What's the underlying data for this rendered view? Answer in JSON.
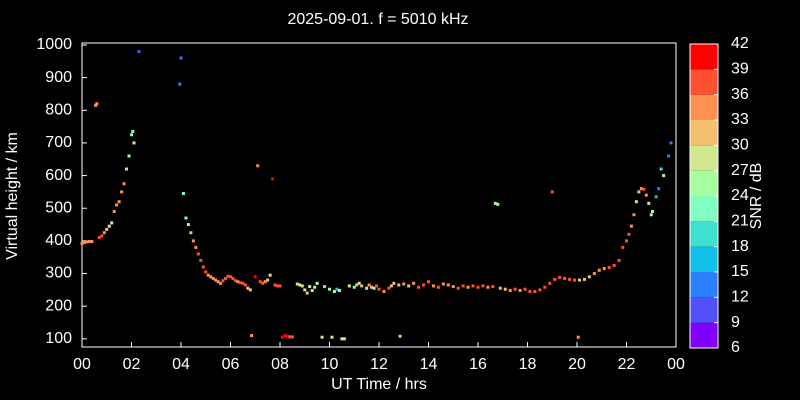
{
  "chart_data": {
    "type": "scatter",
    "title": "2025-09-01. f = 5010 kHz",
    "x_label": "UT Time / hrs",
    "y_label": "Virtual height / km",
    "colorbar_label": "SNR / dB",
    "xlim": [
      0,
      24
    ],
    "ylim": [
      75,
      1006
    ],
    "xticks": [
      {
        "value": 0,
        "label": "00"
      },
      {
        "value": 2,
        "label": "02"
      },
      {
        "value": 4,
        "label": "04"
      },
      {
        "value": 6,
        "label": "06"
      },
      {
        "value": 8,
        "label": "08"
      },
      10,
      12,
      14,
      16,
      18,
      20,
      22,
      {
        "value": 24,
        "label": "00"
      }
    ],
    "yticks": [
      100,
      200,
      300,
      400,
      500,
      600,
      700,
      800,
      900,
      1000
    ],
    "clim": [
      6,
      42
    ],
    "cticks": [
      6,
      9,
      12,
      15,
      18,
      21,
      24,
      27,
      30,
      33,
      36,
      39,
      42
    ],
    "colormap": [
      "#8000ff",
      "#5050ff",
      "#2a80ff",
      "#10c0e8",
      "#40e0d0",
      "#80ffc0",
      "#a8ffa0",
      "#d0e890",
      "#f4c070",
      "#ff9050",
      "#ff5030",
      "#ff0000"
    ],
    "x": [
      0.0,
      0.1,
      0.2,
      0.3,
      0.4,
      0.55,
      0.6,
      0.7,
      0.8,
      0.9,
      1.0,
      1.1,
      1.2,
      1.3,
      1.4,
      1.5,
      1.6,
      1.7,
      1.8,
      1.9,
      2.0,
      2.05,
      2.1,
      2.3,
      3.95,
      4.0,
      4.1,
      4.2,
      4.3,
      4.4,
      4.5,
      4.6,
      4.7,
      4.8,
      4.9,
      5.0,
      5.1,
      5.2,
      5.3,
      5.4,
      5.5,
      5.6,
      5.7,
      5.8,
      5.9,
      6.0,
      6.1,
      6.2,
      6.3,
      6.4,
      6.5,
      6.6,
      6.7,
      6.8,
      6.85,
      7.0,
      7.1,
      7.2,
      7.3,
      7.4,
      7.5,
      7.6,
      7.7,
      7.8,
      7.9,
      8.0,
      8.1,
      8.2,
      8.3,
      8.4,
      8.5,
      8.7,
      8.8,
      8.9,
      9.0,
      9.1,
      9.2,
      9.3,
      9.4,
      9.5,
      9.7,
      9.8,
      10.0,
      10.1,
      10.2,
      10.3,
      10.4,
      10.5,
      10.6,
      10.8,
      11.0,
      11.1,
      11.2,
      11.3,
      11.5,
      11.6,
      11.7,
      11.8,
      11.9,
      12.0,
      12.2,
      12.4,
      12.5,
      12.6,
      12.8,
      12.85,
      13.0,
      13.2,
      13.4,
      13.6,
      13.8,
      14.0,
      14.2,
      14.4,
      14.6,
      14.8,
      15.0,
      15.2,
      15.4,
      15.6,
      15.8,
      16.0,
      16.2,
      16.4,
      16.6,
      16.7,
      16.8,
      16.9,
      17.1,
      17.3,
      17.5,
      17.7,
      17.9,
      18.1,
      18.3,
      18.5,
      18.7,
      18.9,
      19.0,
      19.1,
      19.3,
      19.5,
      19.7,
      19.9,
      20.05,
      20.1,
      20.3,
      20.5,
      20.7,
      20.9,
      21.1,
      21.3,
      21.5,
      21.7,
      21.85,
      22.0,
      22.1,
      22.2,
      22.3,
      22.4,
      22.5,
      22.6,
      22.7,
      22.8,
      22.9,
      23.0,
      23.05,
      23.2,
      23.3,
      23.4,
      23.5,
      23.7,
      23.8
    ],
    "y": [
      392,
      395,
      397,
      398,
      398,
      815,
      820,
      410,
      415,
      425,
      435,
      445,
      455,
      490,
      510,
      520,
      550,
      575,
      620,
      660,
      725,
      735,
      700,
      980,
      880,
      960,
      545,
      470,
      450,
      425,
      400,
      380,
      360,
      340,
      320,
      305,
      295,
      290,
      285,
      280,
      275,
      270,
      278,
      285,
      292,
      290,
      285,
      278,
      275,
      272,
      270,
      265,
      255,
      250,
      110,
      290,
      630,
      275,
      270,
      275,
      280,
      295,
      590,
      265,
      262,
      262,
      105,
      110,
      108,
      106,
      106,
      268,
      265,
      262,
      250,
      240,
      260,
      248,
      258,
      270,
      105,
      260,
      252,
      105,
      245,
      252,
      248,
      100,
      100,
      262,
      258,
      265,
      270,
      262,
      255,
      265,
      258,
      255,
      262,
      252,
      245,
      255,
      262,
      270,
      265,
      108,
      268,
      262,
      270,
      258,
      265,
      275,
      262,
      258,
      268,
      265,
      260,
      255,
      262,
      258,
      262,
      258,
      262,
      258,
      260,
      515,
      512,
      255,
      252,
      248,
      252,
      248,
      252,
      245,
      245,
      250,
      258,
      270,
      550,
      282,
      288,
      285,
      282,
      280,
      105,
      280,
      282,
      290,
      300,
      310,
      315,
      318,
      325,
      340,
      380,
      400,
      420,
      445,
      480,
      520,
      550,
      560,
      558,
      540,
      515,
      480,
      490,
      535,
      560,
      620,
      600,
      660,
      700
    ],
    "snr": [
      34,
      34,
      34,
      34,
      34,
      34,
      34,
      36,
      36,
      33,
      30,
      27,
      24,
      33,
      33,
      33,
      33,
      33,
      27,
      24,
      21,
      21,
      27,
      9,
      12,
      12,
      21,
      21,
      27,
      30,
      33,
      33,
      36,
      36,
      36,
      36,
      34,
      33,
      33,
      34,
      33,
      33,
      36,
      36,
      36,
      36,
      36,
      36,
      33,
      36,
      36,
      36,
      30,
      30,
      34,
      40,
      33,
      36,
      36,
      33,
      30,
      27,
      40,
      36,
      38,
      38,
      40,
      40,
      40,
      36,
      36,
      27,
      27,
      27,
      27,
      30,
      24,
      27,
      27,
      24,
      27,
      30,
      21,
      27,
      24,
      15,
      27,
      27,
      27,
      27,
      21,
      30,
      27,
      30,
      27,
      33,
      30,
      24,
      36,
      36,
      33,
      36,
      30,
      30,
      30,
      30,
      33,
      30,
      33,
      36,
      36,
      36,
      33,
      36,
      33,
      33,
      33,
      36,
      36,
      33,
      36,
      36,
      36,
      33,
      36,
      24,
      24,
      30,
      30,
      33,
      36,
      33,
      36,
      36,
      36,
      36,
      36,
      36,
      36,
      36,
      36,
      36,
      36,
      36,
      33,
      30,
      30,
      30,
      33,
      33,
      33,
      36,
      36,
      36,
      36,
      36,
      36,
      34,
      33,
      27,
      30,
      33,
      36,
      33,
      27,
      24,
      27,
      15,
      12,
      18,
      27,
      12,
      12
    ]
  }
}
